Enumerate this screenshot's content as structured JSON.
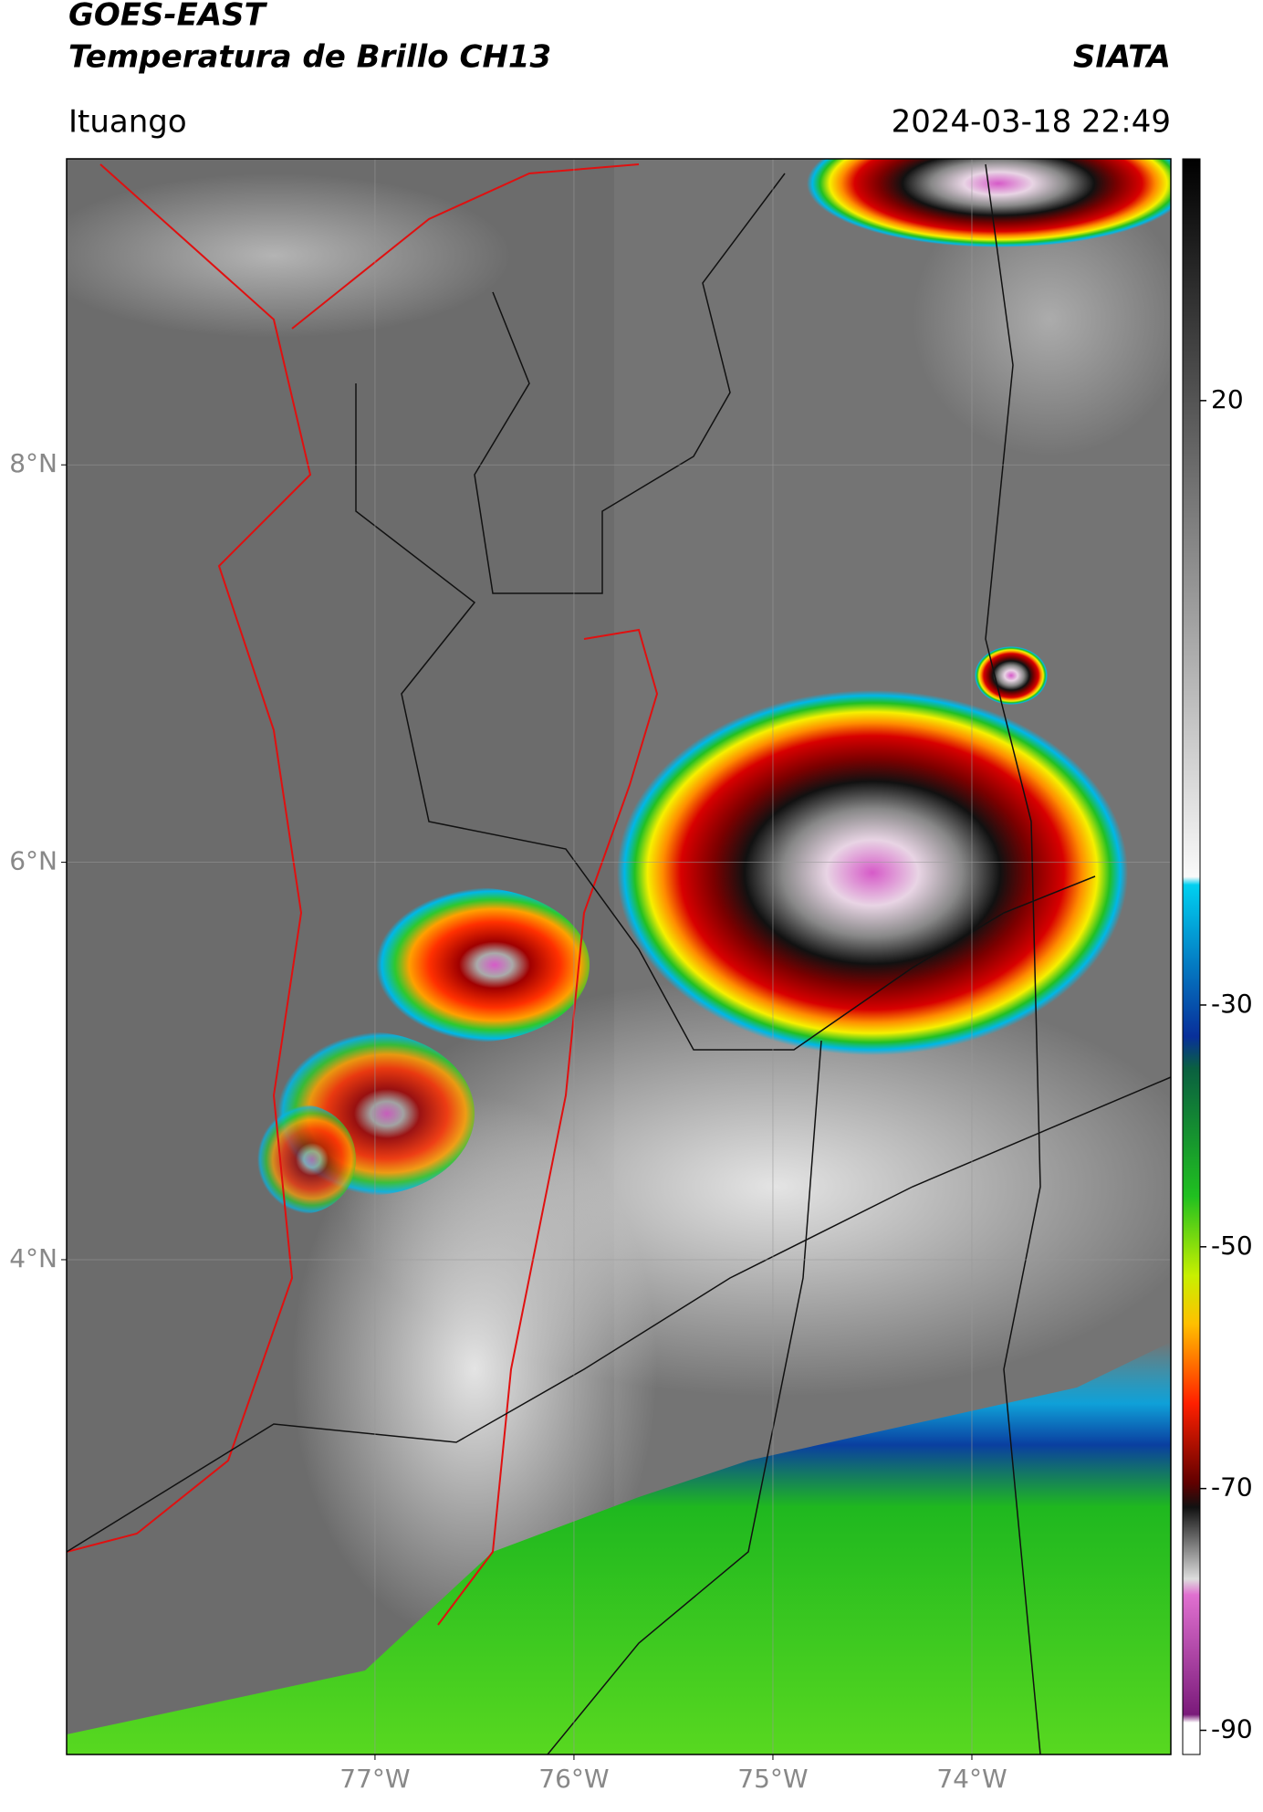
{
  "header": {
    "title": "GOES-EAST",
    "subtitle": "Temperatura de Brillo CH13",
    "source": "SIATA",
    "location": "Ituango",
    "datetime": "2024-03-18 22:49"
  },
  "map": {
    "xlim": [
      -78.55,
      -73
    ],
    "ylim": [
      1.51,
      9.54
    ],
    "xticks": [
      {
        "value": -77,
        "label": "77°W"
      },
      {
        "value": -76,
        "label": "76°W"
      },
      {
        "value": -75,
        "label": "75°W"
      },
      {
        "value": -74,
        "label": "74°W"
      }
    ],
    "yticks": [
      {
        "value": 8,
        "label": "8°N"
      },
      {
        "value": 6,
        "label": "6°N"
      },
      {
        "value": 4,
        "label": "4°N"
      }
    ],
    "grid": true
  },
  "colorbar": {
    "lim": [
      -92,
      40
    ],
    "ticks": [
      20,
      -30,
      -50,
      -70,
      -90
    ]
  }
}
